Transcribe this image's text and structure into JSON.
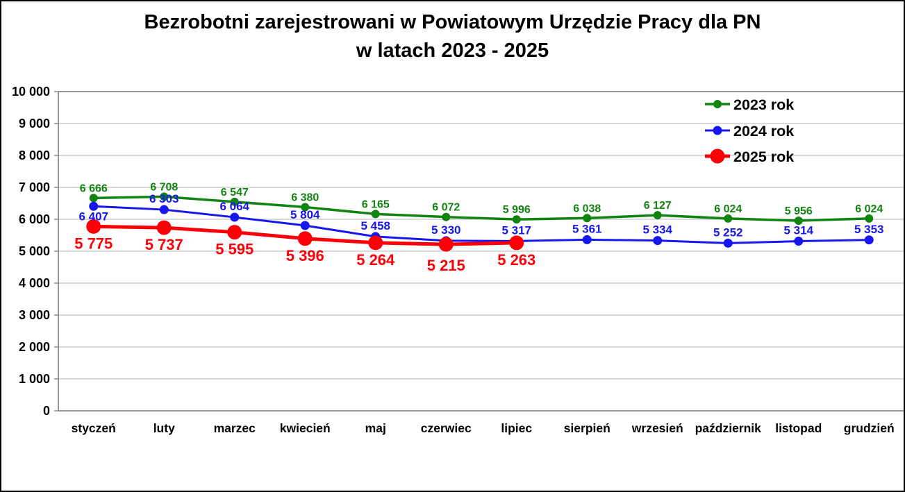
{
  "title": {
    "line1": "Bezrobotni zarejestrowani w Powiatowym Urzędzie Pracy dla PN",
    "line2": "w latach 2023 - 2025"
  },
  "chart_data": {
    "type": "line",
    "title": "Bezrobotni zarejestrowani w Powiatowym Urzędzie Pracy dla PN w latach 2023 - 2025",
    "categories": [
      "styczeń",
      "luty",
      "marzec",
      "kwiecień",
      "maj",
      "czerwiec",
      "lipiec",
      "sierpień",
      "wrzesień",
      "październik",
      "listopad",
      "grudzień"
    ],
    "y_ticks": [
      "0",
      "1 000",
      "2 000",
      "3 000",
      "4 000",
      "5 000",
      "6 000",
      "7 000",
      "8 000",
      "9 000",
      "10 000"
    ],
    "ylim": [
      0,
      10000
    ],
    "grid": true,
    "legend_position": "top-right-inside",
    "series": [
      {
        "name": "2023 rok",
        "color": "#108310",
        "values": [
          6666,
          6708,
          6547,
          6380,
          6165,
          6072,
          5996,
          6038,
          6127,
          6024,
          5956,
          6024
        ],
        "labels": [
          "6 666",
          "6 708",
          "6 547",
          "6 380",
          "6 165",
          "6 072",
          "5 996",
          "6 038",
          "6 127",
          "6 024",
          "5 956",
          "6 024"
        ]
      },
      {
        "name": "2024 rok",
        "color": "#1616f0",
        "values": [
          6407,
          6303,
          6064,
          5804,
          5458,
          5330,
          5317,
          5361,
          5334,
          5252,
          5314,
          5353
        ],
        "labels": [
          "6 407",
          "6 303",
          "6 064",
          "5 804",
          "5 458",
          "5 330",
          "5 317",
          "5 361",
          "5 334",
          "5 252",
          "5 314",
          "5 353"
        ]
      },
      {
        "name": "2025 rok",
        "color": "#fb0006",
        "values": [
          5775,
          5737,
          5595,
          5396,
          5264,
          5215,
          5263
        ],
        "labels": [
          "5 775",
          "5 737",
          "5 595",
          "5 396",
          "5 264",
          "5 215",
          "5 263"
        ]
      }
    ]
  },
  "colors": {
    "background": "#ffffff",
    "frame_border": "#000000",
    "plot_border": "#7a7a7a",
    "gridline": "#c2c2c2",
    "axis_text": "#000000",
    "series_2023": "#108310",
    "series_2024": "#1616f0",
    "series_2025": "#fb0006"
  }
}
